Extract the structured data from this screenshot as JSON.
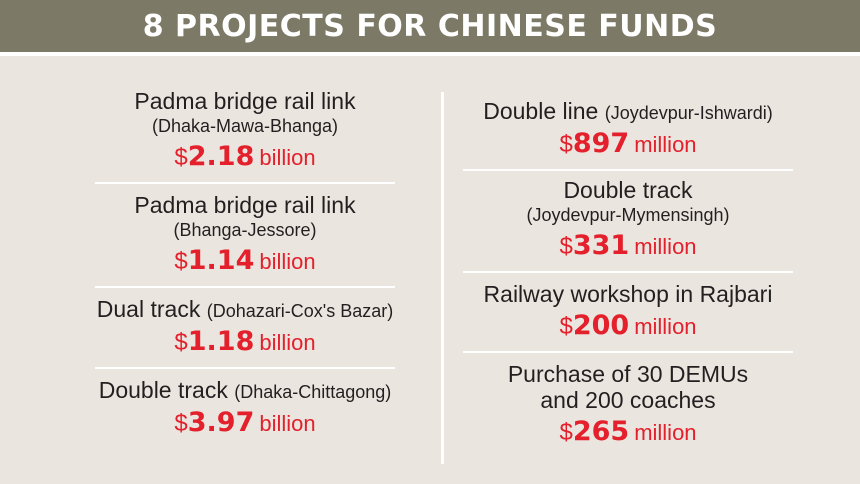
{
  "header": {
    "title": "8 PROJECTS FOR CHINESE FUNDS"
  },
  "colors": {
    "header_bg": "#7c7a66",
    "background": "#eae6df",
    "amount": "#e3202b",
    "text": "#231f20"
  },
  "left": [
    {
      "name": "Padma bridge rail link",
      "detail": "(Dhaka-Mawa-Bhanga)",
      "currency": "$",
      "amount": "2.18",
      "unit": "billion"
    },
    {
      "name": "Padma bridge rail link",
      "detail": "(Bhanga-Jessore)",
      "currency": "$",
      "amount": "1.14",
      "unit": "billion"
    },
    {
      "name": "Dual track",
      "detail": "(Dohazari-Cox's Bazar)",
      "currency": "$",
      "amount": "1.18",
      "unit": "billion"
    },
    {
      "name": "Double track",
      "detail": "(Dhaka-Chittagong)",
      "currency": "$",
      "amount": "3.97",
      "unit": "billion"
    }
  ],
  "right": [
    {
      "name": "Double line",
      "detail": "(Joydevpur-Ishwardi)",
      "currency": "$",
      "amount": "897",
      "unit": "million"
    },
    {
      "name": "Double track",
      "detail": "(Joydevpur-Mymensingh)",
      "currency": "$",
      "amount": "331",
      "unit": "million"
    },
    {
      "name": "Railway workshop in Rajbari",
      "currency": "$",
      "amount": "200",
      "unit": "million"
    },
    {
      "name": "Purchase of 30 DEMUs",
      "name2": "and 200 coaches",
      "currency": "$",
      "amount": "265",
      "unit": "million"
    }
  ]
}
